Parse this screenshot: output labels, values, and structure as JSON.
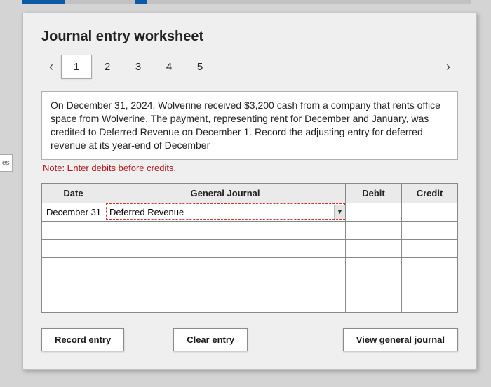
{
  "sidebar_fragment": "es",
  "progress": {
    "track_color": "#c2c2c2",
    "fill_color": "#0d5aa7"
  },
  "card": {
    "title": "Journal entry worksheet",
    "tabs": [
      "1",
      "2",
      "3",
      "4",
      "5"
    ],
    "active_tab_index": 0,
    "nav_prev": "‹",
    "nav_next": "›",
    "instruction": "On December 31, 2024, Wolverine received $3,200 cash from a company that rents office space from Wolverine. The payment, representing rent for December and January, was credited to Deferred Revenue on December 1. Record the adjusting entry for deferred revenue at its year-end of December",
    "note": "Note: Enter debits before credits.",
    "table": {
      "headers": {
        "date": "Date",
        "general_journal": "General Journal",
        "debit": "Debit",
        "credit": "Credit"
      },
      "rows": [
        {
          "date": "December 31",
          "gj": "Deferred Revenue",
          "debit": "",
          "credit": "",
          "gj_active": true
        },
        {
          "date": "",
          "gj": "",
          "debit": "",
          "credit": ""
        },
        {
          "date": "",
          "gj": "",
          "debit": "",
          "credit": ""
        },
        {
          "date": "",
          "gj": "",
          "debit": "",
          "credit": ""
        },
        {
          "date": "",
          "gj": "",
          "debit": "",
          "credit": ""
        },
        {
          "date": "",
          "gj": "",
          "debit": "",
          "credit": ""
        }
      ],
      "col_widths": {
        "date": 90,
        "debit": 80,
        "credit": 80
      },
      "header_bg": "#eaeaea",
      "border_color": "#888888",
      "active_outline_color": "#cc3333"
    },
    "buttons": {
      "record": "Record entry",
      "clear": "Clear entry",
      "view": "View general journal"
    },
    "colors": {
      "card_bg": "#efefef",
      "page_bg": "#d4d4d4",
      "note_color": "#b01818",
      "btn_bg": "#ffffff",
      "btn_border": "#8a8a8a"
    }
  }
}
